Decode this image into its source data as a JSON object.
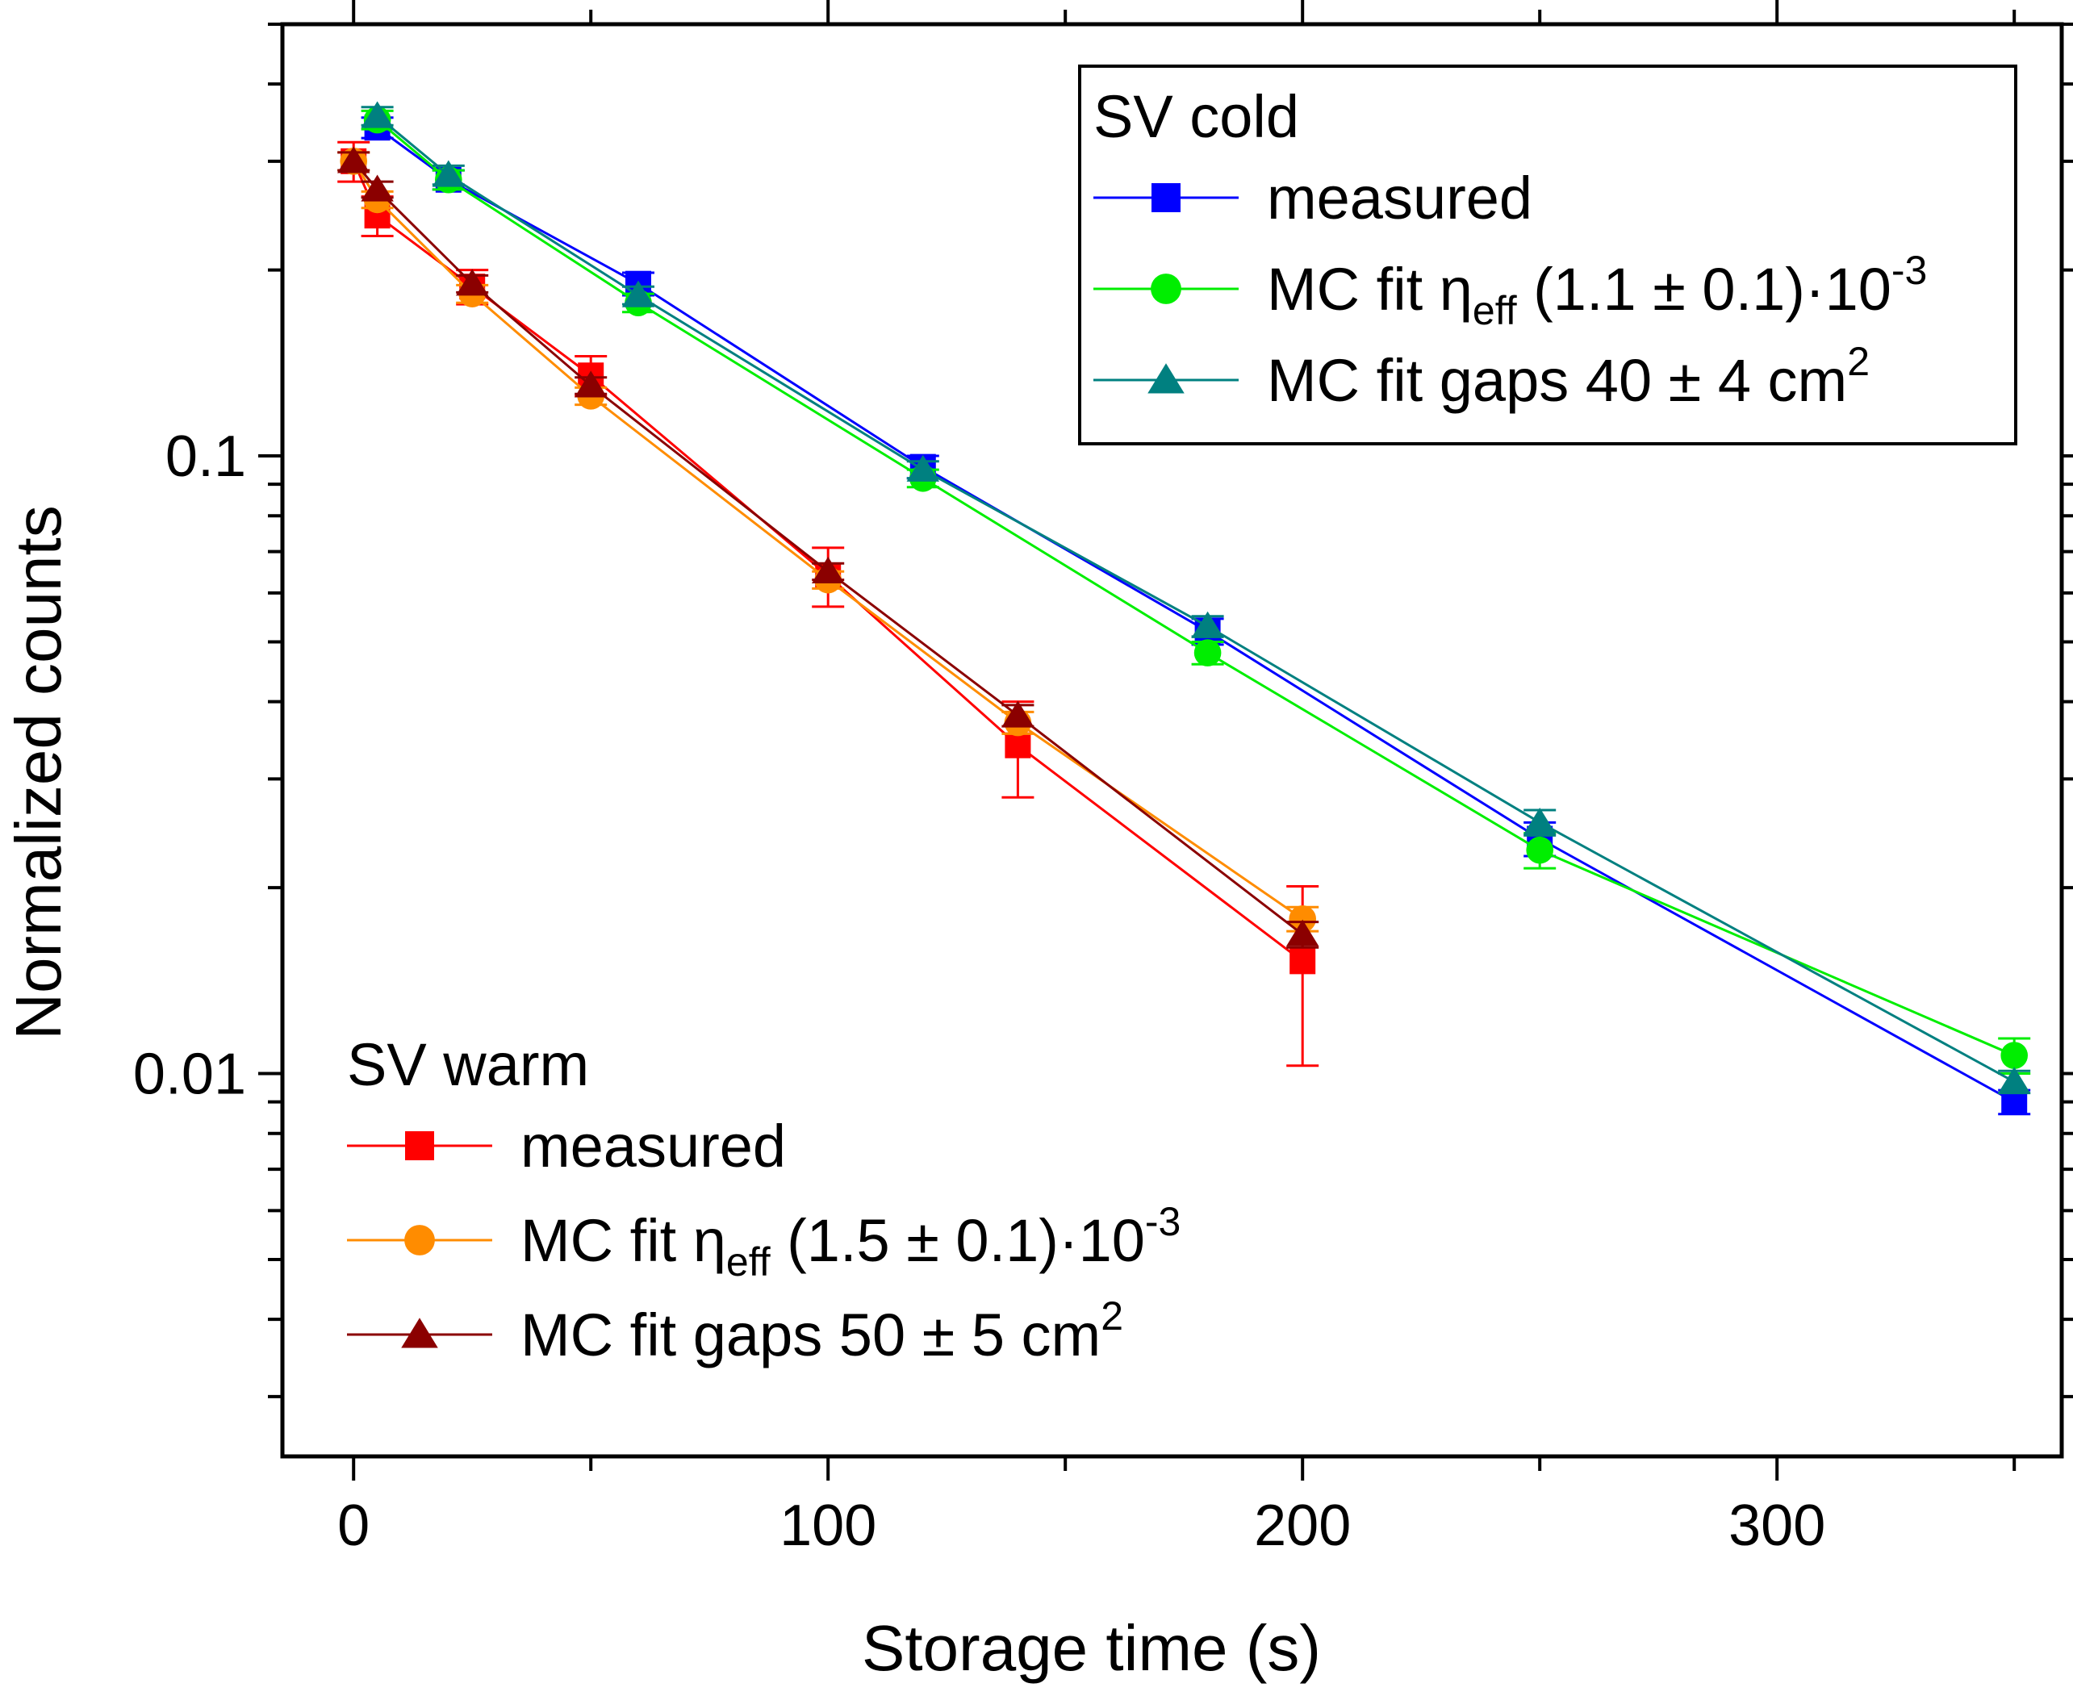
{
  "chart_data": {
    "type": "line",
    "xlabel": "Storage time (s)",
    "ylabel": "Normalized counts",
    "xlim": [
      -15,
      360
    ],
    "ylim": [
      0.0024,
      0.5
    ],
    "yscale": "log",
    "xticks": [
      0,
      100,
      200,
      300
    ],
    "xtick_labels": [
      "0",
      "100",
      "200",
      "300"
    ],
    "yticks": [
      0.01,
      0.1
    ],
    "ytick_labels": [
      "0.01",
      "0.1"
    ],
    "legends": [
      {
        "title": "SV cold",
        "placement": "top-right",
        "entries": [
          {
            "series": 0,
            "label": "measured"
          },
          {
            "series": 1,
            "label": "MC fit η",
            "sub": "eff",
            "tail": " (1.1 ± 0.1)·10",
            "sup": "-3"
          },
          {
            "series": 2,
            "label": "MC fit gaps 40 ± 4 cm",
            "sup": "2"
          }
        ]
      },
      {
        "title": "SV warm",
        "placement": "bottom-left",
        "entries": [
          {
            "series": 3,
            "label": "measured"
          },
          {
            "series": 4,
            "label": "MC fit η",
            "sub": "eff",
            "tail": " (1.5 ± 0.1)·10",
            "sup": "-3"
          },
          {
            "series": 5,
            "label": "MC fit gaps 50 ± 5 cm",
            "sup": "2"
          }
        ]
      }
    ],
    "series": [
      {
        "name": "SV cold measured",
        "color": "#0000ff",
        "marker": "square",
        "x": [
          5,
          20,
          60,
          120,
          180,
          250,
          350
        ],
        "y": [
          0.34,
          0.28,
          0.19,
          0.096,
          0.052,
          0.024,
          0.009
        ],
        "err_low": [
          0.013,
          0.01,
          0.008,
          0.004,
          0.0025,
          0.0015,
          0.0004
        ],
        "err_high": [
          0.013,
          0.01,
          0.008,
          0.004,
          0.0025,
          0.0015,
          0.0004
        ]
      },
      {
        "name": "SV cold MC fit eta",
        "color": "#00ee00",
        "marker": "circle",
        "x": [
          5,
          20,
          60,
          120,
          180,
          250,
          350
        ],
        "y": [
          0.35,
          0.28,
          0.177,
          0.092,
          0.048,
          0.023,
          0.0107
        ],
        "err_low": [
          0.012,
          0.01,
          0.006,
          0.003,
          0.002,
          0.0015,
          0.0007
        ],
        "err_high": [
          0.012,
          0.01,
          0.006,
          0.003,
          0.002,
          0.0015,
          0.0007
        ]
      },
      {
        "name": "SV cold MC fit gaps",
        "color": "#008080",
        "marker": "triangle",
        "x": [
          5,
          20,
          60,
          120,
          180,
          250,
          350
        ],
        "y": [
          0.355,
          0.285,
          0.182,
          0.095,
          0.053,
          0.0255,
          0.0097
        ],
        "err_low": [
          0.012,
          0.01,
          0.006,
          0.003,
          0.002,
          0.0012,
          0.0004
        ],
        "err_high": [
          0.012,
          0.01,
          0.006,
          0.003,
          0.002,
          0.0012,
          0.0004
        ]
      },
      {
        "name": "SV warm measured",
        "color": "#ff0000",
        "marker": "square",
        "x": [
          0,
          5,
          25,
          50,
          100,
          140,
          200
        ],
        "y": [
          0.3,
          0.245,
          0.188,
          0.135,
          0.064,
          0.034,
          0.0152
        ],
        "err_low": [
          0.022,
          0.018,
          0.012,
          0.01,
          0.007,
          0.006,
          0.0049
        ],
        "err_high": [
          0.022,
          0.018,
          0.012,
          0.01,
          0.007,
          0.006,
          0.0049
        ]
      },
      {
        "name": "SV warm MC fit eta",
        "color": "#ff8c00",
        "marker": "circle",
        "x": [
          0,
          5,
          25,
          50,
          100,
          140,
          200
        ],
        "y": [
          0.3,
          0.26,
          0.183,
          0.125,
          0.063,
          0.037,
          0.0178
        ],
        "err_low": [
          0.01,
          0.008,
          0.006,
          0.004,
          0.002,
          0.0015,
          0.0008
        ],
        "err_high": [
          0.01,
          0.008,
          0.006,
          0.004,
          0.002,
          0.0015,
          0.0008
        ]
      },
      {
        "name": "SV warm MC fit gaps",
        "color": "#8b0000",
        "marker": "triangle",
        "x": [
          0,
          5,
          25,
          50,
          100,
          140,
          200
        ],
        "y": [
          0.3,
          0.27,
          0.19,
          0.13,
          0.065,
          0.038,
          0.0168
        ],
        "err_low": [
          0.01,
          0.008,
          0.006,
          0.004,
          0.002,
          0.0015,
          0.0008
        ],
        "err_high": [
          0.01,
          0.008,
          0.006,
          0.004,
          0.002,
          0.0015,
          0.0008
        ]
      }
    ]
  }
}
